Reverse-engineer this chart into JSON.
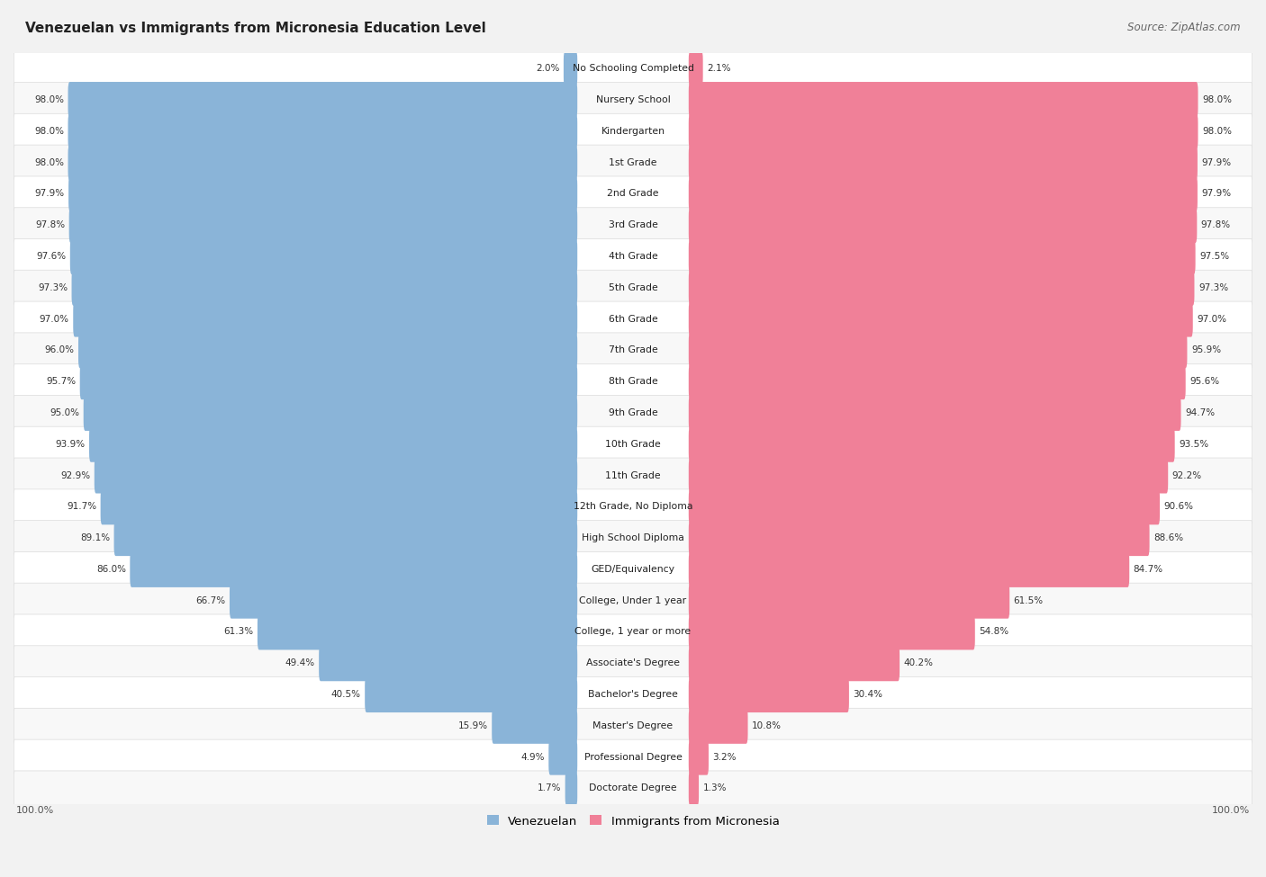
{
  "title": "Venezuelan vs Immigrants from Micronesia Education Level",
  "source": "Source: ZipAtlas.com",
  "categories": [
    "No Schooling Completed",
    "Nursery School",
    "Kindergarten",
    "1st Grade",
    "2nd Grade",
    "3rd Grade",
    "4th Grade",
    "5th Grade",
    "6th Grade",
    "7th Grade",
    "8th Grade",
    "9th Grade",
    "10th Grade",
    "11th Grade",
    "12th Grade, No Diploma",
    "High School Diploma",
    "GED/Equivalency",
    "College, Under 1 year",
    "College, 1 year or more",
    "Associate's Degree",
    "Bachelor's Degree",
    "Master's Degree",
    "Professional Degree",
    "Doctorate Degree"
  ],
  "venezuelan": [
    2.0,
    98.0,
    98.0,
    98.0,
    97.9,
    97.8,
    97.6,
    97.3,
    97.0,
    96.0,
    95.7,
    95.0,
    93.9,
    92.9,
    91.7,
    89.1,
    86.0,
    66.7,
    61.3,
    49.4,
    40.5,
    15.9,
    4.9,
    1.7
  ],
  "micronesia": [
    2.1,
    98.0,
    98.0,
    97.9,
    97.9,
    97.8,
    97.5,
    97.3,
    97.0,
    95.9,
    95.6,
    94.7,
    93.5,
    92.2,
    90.6,
    88.6,
    84.7,
    61.5,
    54.8,
    40.2,
    30.4,
    10.8,
    3.2,
    1.3
  ],
  "venezuelan_color": "#8ab4d8",
  "micronesia_color": "#f08098",
  "background_color": "#f2f2f2",
  "row_even_color": "#ffffff",
  "row_odd_color": "#f8f8f8",
  "row_border_color": "#e0e0e0",
  "legend_venezuelan": "Venezuelan",
  "legend_micronesia": "Immigrants from Micronesia",
  "max_value": 100.0
}
